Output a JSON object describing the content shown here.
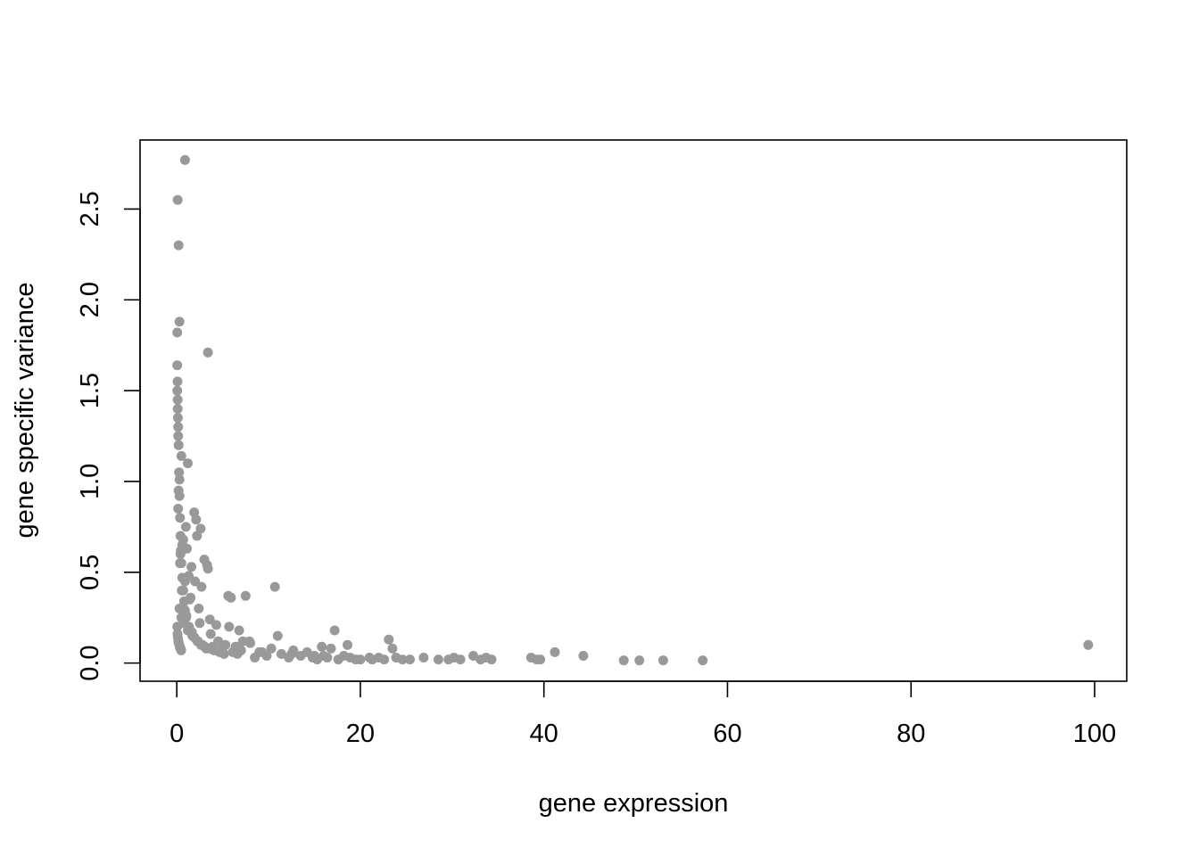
{
  "chart_data": {
    "type": "scatter",
    "title": "",
    "xlabel": "gene expression",
    "ylabel": "gene specific variance",
    "xlim": [
      -4,
      103.5
    ],
    "ylim": [
      -0.1,
      2.88
    ],
    "xticks": [
      0,
      20,
      40,
      60,
      80,
      100
    ],
    "xtick_labels": [
      "0",
      "20",
      "40",
      "60",
      "80",
      "100"
    ],
    "yticks": [
      0.0,
      0.5,
      1.0,
      1.5,
      2.0,
      2.5
    ],
    "ytick_labels": [
      "0.0",
      "0.5",
      "1.0",
      "1.5",
      "2.0",
      "2.5"
    ],
    "grid": false,
    "legend": "none",
    "point_color": "#999999",
    "series": [
      {
        "x": [
          0.9,
          0.1,
          0.2,
          0.3,
          0.05,
          3.4,
          0.05,
          0.08,
          0.1,
          0.12,
          0.15,
          0.5,
          1.2,
          0.3,
          1.9,
          2.1,
          2.6,
          2.2,
          1.0,
          0.7,
          1.1,
          0.4,
          3.0,
          3.3,
          3.4,
          1.6,
          1.3,
          2.0,
          2.7,
          10.7,
          5.6,
          5.9,
          7.5,
          1.5,
          2.4,
          3.6,
          4.3,
          5.7,
          6.8,
          8.0,
          11.0,
          17.2,
          18.6,
          23.1,
          23.5,
          41.2,
          44.3,
          99.3,
          0.3,
          0.5,
          0.8,
          1.2,
          1.7,
          2.3,
          2.8,
          3.2,
          3.9,
          4.8,
          5.3,
          6.1,
          6.6,
          7.2,
          7.9,
          8.5,
          9.3,
          9.8,
          10.3,
          11.4,
          12.2,
          12.7,
          13.5,
          14.2,
          14.8,
          15.3,
          15.8,
          16.4,
          16.8,
          17.6,
          18.2,
          18.9,
          19.5,
          20.0,
          21.3,
          22.0,
          22.6,
          23.9,
          24.6,
          25.4,
          26.9,
          28.5,
          29.6,
          30.2,
          30.9,
          32.3,
          33.1,
          33.7,
          34.3,
          38.6,
          39.2,
          39.6,
          48.7,
          50.4,
          53.0,
          57.3,
          0.2,
          0.6,
          0.9,
          1.4,
          2.5,
          3.7,
          4.5,
          6.4,
          7.0,
          9.0,
          12.5,
          15.0,
          16.0,
          21.0,
          0.15,
          0.35,
          0.55,
          0.75,
          1.05,
          1.35,
          1.65,
          1.95,
          2.25,
          2.65,
          3.05,
          3.55,
          4.05,
          4.65,
          5.15,
          0.05,
          0.1,
          0.15,
          0.2,
          0.25,
          0.3,
          0.35,
          0.4,
          0.45,
          0.5,
          0.6,
          0.7,
          0.8,
          0.9,
          1.0,
          0.05,
          0.08,
          0.12,
          0.18,
          0.22,
          0.28,
          0.32,
          0.38,
          0.42,
          0.48
        ],
        "y": [
          2.77,
          2.55,
          2.3,
          1.88,
          1.82,
          1.71,
          1.64,
          1.55,
          1.45,
          1.35,
          1.25,
          1.14,
          1.1,
          1.01,
          0.83,
          0.79,
          0.74,
          0.7,
          0.75,
          0.68,
          0.63,
          0.6,
          0.57,
          0.54,
          0.52,
          0.53,
          0.48,
          0.45,
          0.42,
          0.42,
          0.37,
          0.36,
          0.37,
          0.36,
          0.3,
          0.24,
          0.21,
          0.2,
          0.18,
          0.11,
          0.15,
          0.18,
          0.1,
          0.13,
          0.08,
          0.06,
          0.04,
          0.1,
          0.3,
          0.25,
          0.22,
          0.18,
          0.15,
          0.12,
          0.1,
          0.08,
          0.09,
          0.07,
          0.1,
          0.06,
          0.05,
          0.12,
          0.12,
          0.03,
          0.06,
          0.04,
          0.08,
          0.05,
          0.03,
          0.07,
          0.04,
          0.06,
          0.03,
          0.02,
          0.09,
          0.03,
          0.08,
          0.02,
          0.04,
          0.03,
          0.02,
          0.02,
          0.02,
          0.03,
          0.02,
          0.03,
          0.02,
          0.02,
          0.03,
          0.02,
          0.02,
          0.03,
          0.02,
          0.04,
          0.02,
          0.03,
          0.02,
          0.03,
          0.02,
          0.02,
          0.015,
          0.015,
          0.015,
          0.015,
          0.95,
          0.65,
          0.45,
          0.35,
          0.22,
          0.16,
          0.12,
          0.09,
          0.07,
          0.06,
          0.05,
          0.04,
          0.04,
          0.03,
          0.85,
          0.55,
          0.4,
          0.3,
          0.26,
          0.2,
          0.17,
          0.14,
          0.12,
          0.1,
          0.09,
          0.08,
          0.07,
          0.06,
          0.05,
          1.5,
          1.4,
          1.3,
          1.2,
          1.05,
          0.92,
          0.8,
          0.7,
          0.62,
          0.55,
          0.47,
          0.4,
          0.34,
          0.29,
          0.25,
          0.2,
          0.16,
          0.14,
          0.12,
          0.11,
          0.1,
          0.09,
          0.08,
          0.08,
          0.07
        ]
      }
    ]
  }
}
